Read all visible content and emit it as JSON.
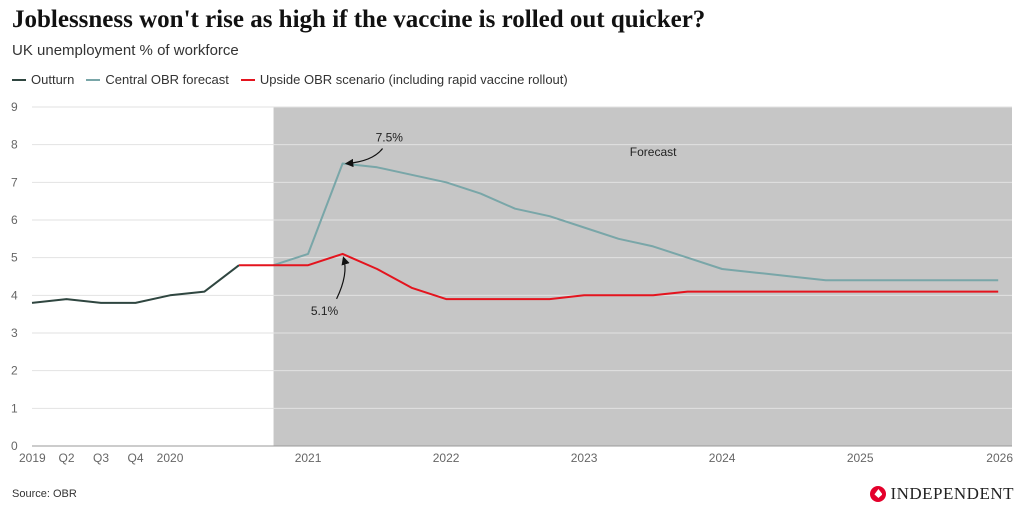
{
  "chart_data": {
    "type": "line",
    "title": "Joblessness won't rise as high if the vaccine is rolled out quicker?",
    "subtitle": "UK unemployment % of workforce",
    "ylim": [
      0,
      9
    ],
    "yticks": [
      0,
      1,
      2,
      3,
      4,
      5,
      6,
      7,
      8,
      9
    ],
    "xlim": [
      2019,
      2026.1
    ],
    "xticks": [
      {
        "x": 2019,
        "label": "2019"
      },
      {
        "x": 2019.25,
        "label": "Q2"
      },
      {
        "x": 2019.5,
        "label": "Q3"
      },
      {
        "x": 2019.75,
        "label": "Q4"
      },
      {
        "x": 2020,
        "label": "2020"
      },
      {
        "x": 2021,
        "label": "2021"
      },
      {
        "x": 2022,
        "label": "2022"
      },
      {
        "x": 2023,
        "label": "2023"
      },
      {
        "x": 2024,
        "label": "2024"
      },
      {
        "x": 2025,
        "label": "2025"
      },
      {
        "x": 2026,
        "label": "2026"
      }
    ],
    "forecast_region": {
      "start": 2020.75,
      "end": 2026.1,
      "label": "Forecast",
      "color": "#c6c6c6"
    },
    "series": [
      {
        "name": "Outturn",
        "color": "#2f4640",
        "x": [
          2019,
          2019.25,
          2019.5,
          2019.75,
          2020,
          2020.25,
          2020.5
        ],
        "y": [
          3.8,
          3.9,
          3.8,
          3.8,
          4.0,
          4.1,
          4.8
        ]
      },
      {
        "name": "Central OBR forecast",
        "color": "#79a6a8",
        "x": [
          2020.75,
          2021,
          2021.25,
          2021.5,
          2021.75,
          2022,
          2022.25,
          2022.5,
          2022.75,
          2023,
          2023.25,
          2023.5,
          2023.75,
          2024,
          2024.25,
          2024.5,
          2024.75,
          2025,
          2025.25,
          2025.5,
          2025.75,
          2026
        ],
        "y": [
          4.8,
          5.1,
          7.5,
          7.4,
          7.2,
          7.0,
          6.7,
          6.3,
          6.1,
          5.8,
          5.5,
          5.3,
          5.0,
          4.7,
          4.6,
          4.5,
          4.4,
          4.4,
          4.4,
          4.4,
          4.4,
          4.4
        ]
      },
      {
        "name": "Upside OBR scenario (including rapid vaccine rollout)",
        "color": "#e4141e",
        "x": [
          2020.5,
          2020.75,
          2021,
          2021.25,
          2021.5,
          2021.75,
          2022,
          2022.25,
          2022.5,
          2022.75,
          2023,
          2023.25,
          2023.5,
          2023.75,
          2024,
          2024.25,
          2024.5,
          2024.75,
          2025,
          2025.25,
          2025.5,
          2025.75,
          2026
        ],
        "y": [
          4.8,
          4.8,
          4.8,
          5.1,
          4.7,
          4.2,
          3.9,
          3.9,
          3.9,
          3.9,
          4.0,
          4.0,
          4.0,
          4.1,
          4.1,
          4.1,
          4.1,
          4.1,
          4.1,
          4.1,
          4.1,
          4.1,
          4.1
        ]
      }
    ],
    "annotations": [
      {
        "text": "7.5%",
        "x": 2021.25,
        "y": 7.5
      },
      {
        "text": "5.1%",
        "x": 2021.25,
        "y": 5.1
      }
    ],
    "source": "Source: OBR"
  },
  "brand": {
    "name": "INDEPENDENT"
  }
}
